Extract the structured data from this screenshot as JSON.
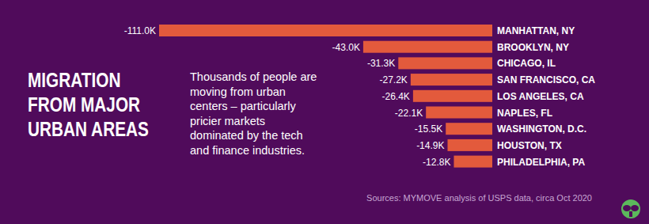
{
  "chart_data": {
    "type": "bar",
    "orientation": "horizontal",
    "title": "MIGRATION FROM MAJOR URBAN AREAS",
    "subtitle": "Thousands of people are moving from urban centers – particularly pricier markets dominated by the tech and finance industries.",
    "source": "Sources: MYMOVE analysis of USPS data, circa Oct 2020",
    "categories": [
      "MANHATTAN, NY",
      "BROOKLYN, NY",
      "CHICAGO, IL",
      "SAN FRANCISCO, CA",
      "LOS ANGELES, CA",
      "NAPLES, FL",
      "WASHINGTON, D.C.",
      "HOUSTON, TX",
      "PHILADELPHIA, PA"
    ],
    "values": [
      -111.0,
      -43.0,
      -31.3,
      -27.2,
      -26.4,
      -22.1,
      -15.5,
      -14.9,
      -12.8
    ],
    "value_labels": [
      "-111.0K",
      "-43.0K",
      "-31.3K",
      "-27.2K",
      "-26.4K",
      "-22.1K",
      "-15.5K",
      "-14.9K",
      "-12.8K"
    ],
    "color": "#e35a3c",
    "xlim": [
      -111,
      0
    ],
    "data_labels": true,
    "tick_labels": "y",
    "grid": false
  }
}
